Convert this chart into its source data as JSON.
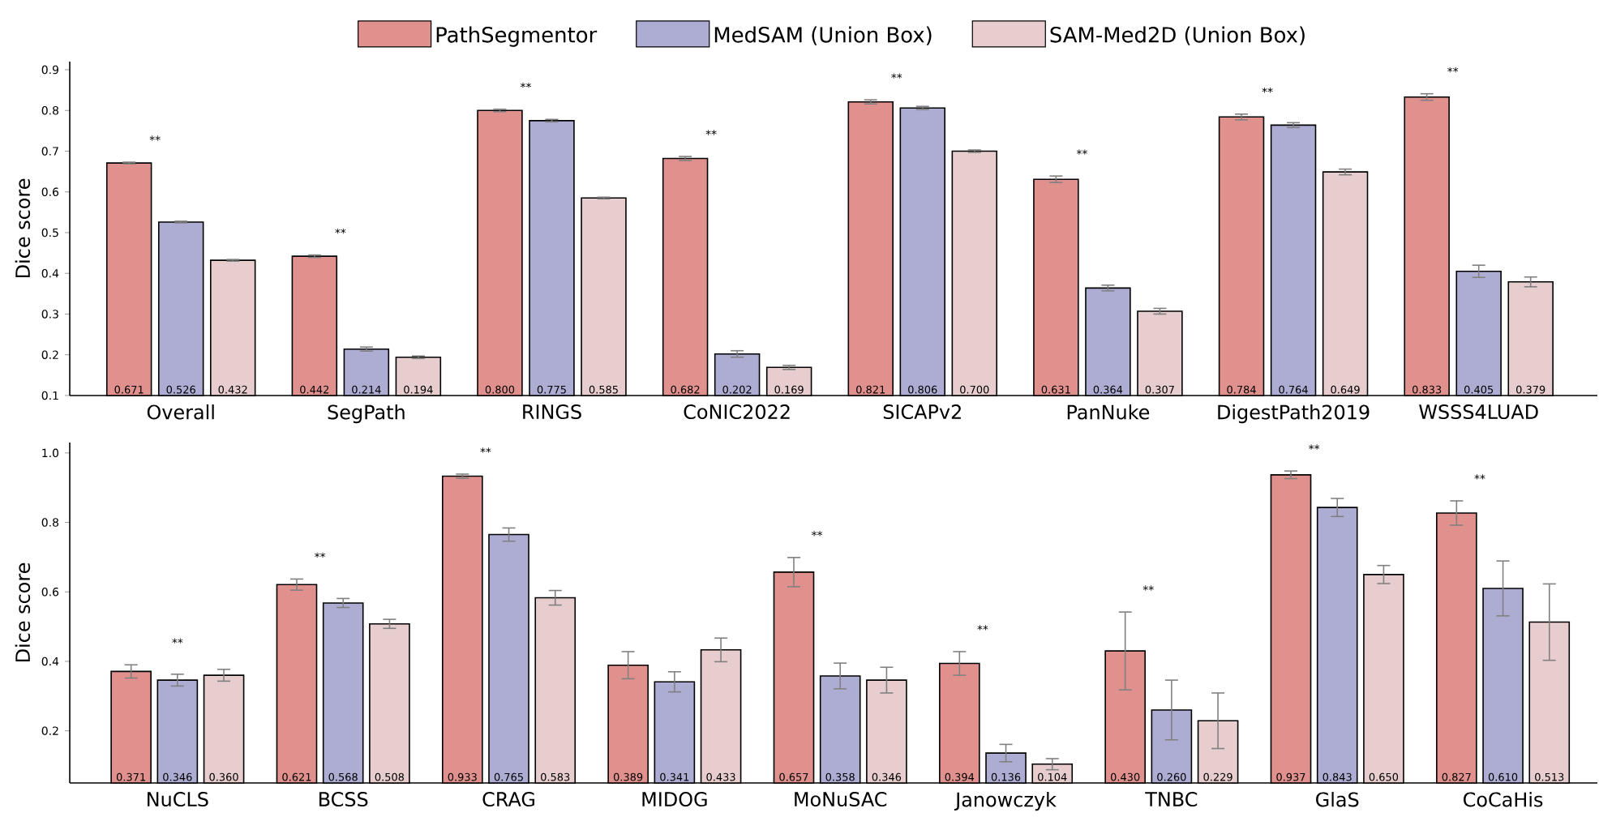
{
  "chart_data": [
    {
      "type": "bar",
      "ylabel": "Dice score",
      "categories": [
        "Overall",
        "SegPath",
        "RINGS",
        "CoNIC2022",
        "SICAPv2",
        "PanNuke",
        "DigestPath2019",
        "WSSS4LUAD"
      ],
      "series": [
        {
          "name": "PathSegmentor",
          "color": "#e1918d",
          "values": [
            0.671,
            0.442,
            0.8,
            0.682,
            0.821,
            0.631,
            0.784,
            0.833
          ],
          "errors": [
            0.002,
            0.003,
            0.003,
            0.005,
            0.005,
            0.008,
            0.007,
            0.008
          ],
          "value_labels": [
            "0.671",
            "0.442",
            "0.800",
            "0.682",
            "0.821",
            "0.631",
            "0.784",
            "0.833"
          ]
        },
        {
          "name": "MedSAM (Union Box)",
          "color": "#adadd4",
          "values": [
            0.526,
            0.214,
            0.775,
            0.202,
            0.806,
            0.364,
            0.764,
            0.405
          ],
          "errors": [
            0.002,
            0.005,
            0.003,
            0.008,
            0.004,
            0.007,
            0.006,
            0.015
          ],
          "value_labels": [
            "0.526",
            "0.214",
            "0.775",
            "0.202",
            "0.806",
            "0.364",
            "0.764",
            "0.405"
          ]
        },
        {
          "name": "SAM-Med2D (Union Box)",
          "color": "#e7cdcd",
          "values": [
            0.432,
            0.194,
            0.585,
            0.169,
            0.7,
            0.307,
            0.649,
            0.379
          ],
          "errors": [
            0.002,
            0.003,
            0.002,
            0.005,
            0.003,
            0.007,
            0.007,
            0.012
          ],
          "value_labels": [
            "0.432",
            "0.194",
            "0.585",
            "0.169",
            "0.700",
            "0.307",
            "0.649",
            "0.379"
          ]
        }
      ],
      "ylim": [
        0.1,
        0.92
      ],
      "yticks": [
        0.1,
        0.2,
        0.3,
        0.4,
        0.5,
        0.6,
        0.7,
        0.8,
        0.9
      ],
      "legend": "top",
      "annotations": [
        "**",
        "**",
        "**",
        "**",
        "**",
        "**",
        "**",
        "**"
      ]
    },
    {
      "type": "bar",
      "ylabel": "Dice score",
      "categories": [
        "NuCLS",
        "BCSS",
        "CRAG",
        "MIDOG",
        "MoNuSAC",
        "Janowczyk",
        "TNBC",
        "GlaS",
        "CoCaHis"
      ],
      "series": [
        {
          "color": "#e1918d",
          "values": [
            0.371,
            0.621,
            0.933,
            0.389,
            0.657,
            0.394,
            0.43,
            0.937,
            0.827
          ],
          "errors": [
            0.019,
            0.016,
            0.006,
            0.039,
            0.042,
            0.034,
            0.112,
            0.011,
            0.035
          ],
          "value_labels": [
            "0.371",
            "0.621",
            "0.933",
            "0.389",
            "0.657",
            "0.394",
            "0.430",
            "0.937",
            "0.827"
          ]
        },
        {
          "color": "#adadd4",
          "values": [
            0.346,
            0.568,
            0.765,
            0.341,
            0.358,
            0.136,
            0.26,
            0.843,
            0.61
          ],
          "errors": [
            0.017,
            0.013,
            0.019,
            0.029,
            0.037,
            0.025,
            0.086,
            0.026,
            0.079
          ],
          "value_labels": [
            "0.346",
            "0.568",
            "0.765",
            "0.341",
            "0.358",
            "0.136",
            "0.260",
            "0.843",
            "0.610"
          ]
        },
        {
          "color": "#e7cdcd",
          "values": [
            0.36,
            0.508,
            0.583,
            0.433,
            0.346,
            0.104,
            0.229,
            0.65,
            0.513
          ],
          "errors": [
            0.017,
            0.013,
            0.021,
            0.034,
            0.037,
            0.016,
            0.08,
            0.026,
            0.11
          ],
          "value_labels": [
            "0.360",
            "0.508",
            "0.583",
            "0.433",
            "0.346",
            "0.104",
            "0.229",
            "0.650",
            "0.513"
          ]
        }
      ],
      "ylim": [
        0.05,
        1.03
      ],
      "yticks": [
        0.2,
        0.4,
        0.6,
        0.8,
        {
          "value": 1.0,
          "label": "1.0"
        }
      ],
      "annotations": [
        "**",
        "**",
        "**",
        "**",
        "**",
        "**",
        "**",
        "**"
      ]
    }
  ]
}
